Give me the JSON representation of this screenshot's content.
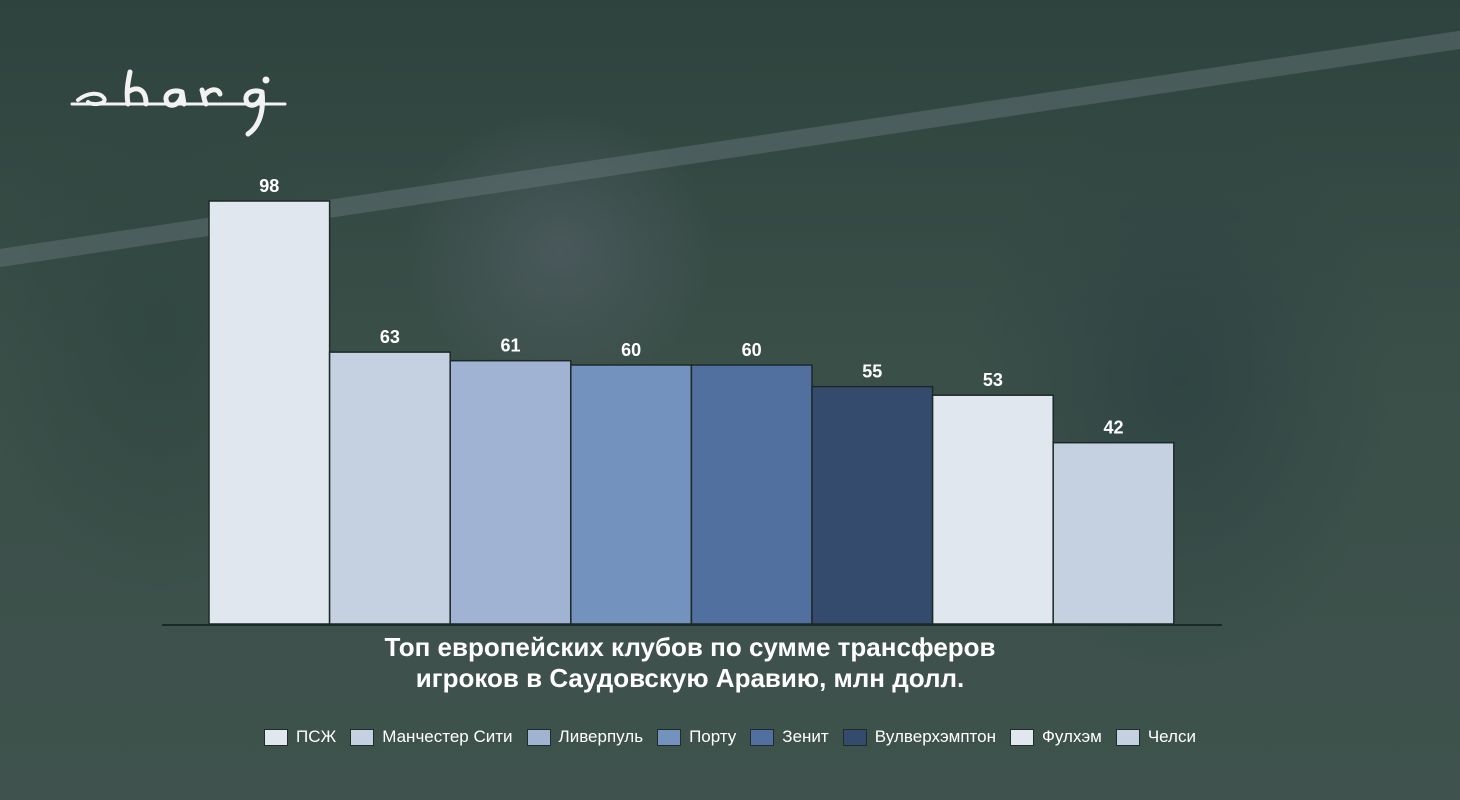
{
  "logo_text": "shara",
  "chart_data": {
    "type": "bar",
    "title": [
      "Топ европейских клубов по сумме трансферов",
      "игроков в Саудовскую Аравию, млн долл."
    ],
    "categories": [
      "ПСЖ",
      "Манчестер Сити",
      "Ливерпуль",
      "Порту",
      "Зенит",
      "Вулверхэмптон",
      "Фулхэм",
      "Челси"
    ],
    "values": [
      98,
      63,
      61,
      60,
      60,
      55,
      53,
      42
    ],
    "colors": [
      "#e1e7ef",
      "#c5d0e1",
      "#a1b3d2",
      "#7393be",
      "#516f9f",
      "#354b6d",
      "#e1e7ef",
      "#c5d0e1"
    ],
    "ylim": [
      0,
      98
    ],
    "legend_position": "bottom",
    "grid": false,
    "xlabel": "",
    "ylabel": ""
  }
}
